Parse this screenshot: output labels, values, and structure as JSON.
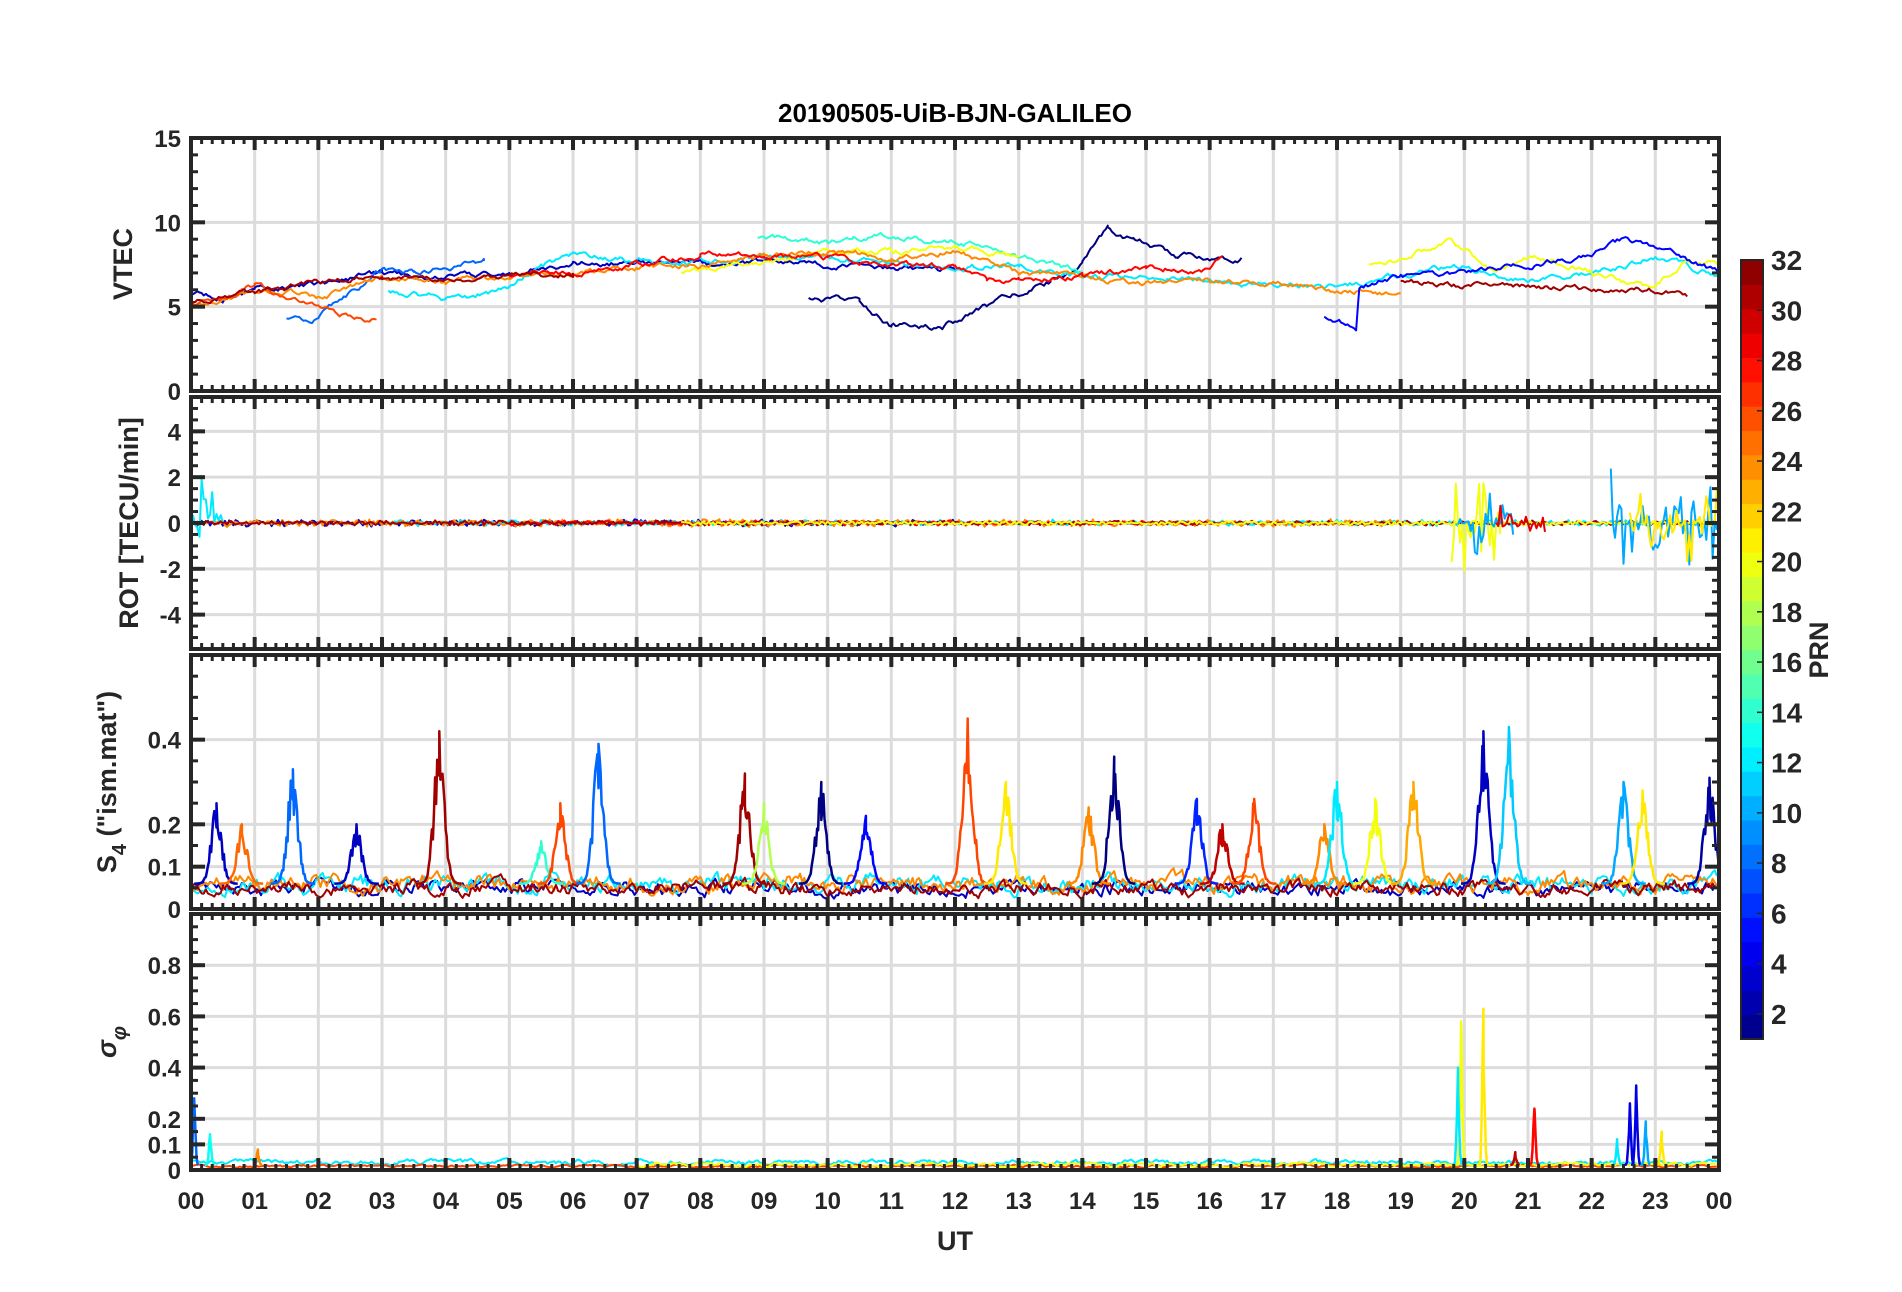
{
  "chart_data": {
    "type": "line",
    "title": "20190505-UiB-BJN-GALILEO",
    "xlabel": "UT",
    "xlim": [
      0,
      24
    ],
    "x_ticks": [
      "00",
      "01",
      "02",
      "03",
      "04",
      "05",
      "06",
      "07",
      "08",
      "09",
      "10",
      "11",
      "12",
      "13",
      "14",
      "15",
      "16",
      "17",
      "18",
      "19",
      "20",
      "21",
      "22",
      "23",
      "00"
    ],
    "colorbar": {
      "label": "PRN",
      "colormap": "jet",
      "range": [
        1,
        32
      ],
      "ticks": [
        "2",
        "4",
        "6",
        "8",
        "10",
        "12",
        "14",
        "16",
        "18",
        "20",
        "22",
        "24",
        "26",
        "28",
        "30",
        "32"
      ]
    },
    "panels": [
      {
        "id": "vtec",
        "ylabel": "VTEC",
        "ylim": [
          0,
          15
        ],
        "yticks": [
          0,
          5,
          10,
          15
        ],
        "ytick_labels": [
          "0",
          "5",
          "10",
          "15"
        ],
        "series": [
          {
            "prn": 1,
            "points": [
              [
                9.7,
                5.4
              ],
              [
                10.5,
                5.3
              ],
              [
                11,
                3.9
              ],
              [
                11.8,
                3.8
              ],
              [
                12.5,
                5
              ],
              [
                13.5,
                6.5
              ],
              [
                14,
                7.5
              ],
              [
                14.4,
                9.6
              ],
              [
                14.8,
                9
              ],
              [
                15.5,
                8
              ],
              [
                16.5,
                7.9
              ]
            ]
          },
          {
            "prn": 3,
            "points": [
              [
                0,
                5.8
              ],
              [
                0.5,
                5.5
              ],
              [
                1,
                6
              ],
              [
                2,
                6.3
              ],
              [
                3,
                7
              ],
              [
                4,
                6.7
              ],
              [
                5,
                7
              ],
              [
                6,
                7.5
              ],
              [
                7,
                7.6
              ],
              [
                8,
                7.5
              ],
              [
                9,
                7.6
              ],
              [
                10,
                7.5
              ],
              [
                11,
                7.3
              ],
              [
                12,
                7.2
              ]
            ]
          },
          {
            "prn": 8,
            "points": [
              [
                1.5,
                4.2
              ],
              [
                2,
                4.3
              ],
              [
                2.2,
                5
              ],
              [
                3,
                7.2
              ],
              [
                3.5,
                7
              ],
              [
                4.6,
                7.7
              ]
            ]
          },
          {
            "prn": 12,
            "points": [
              [
                3.1,
                5.9
              ],
              [
                4,
                5.5
              ],
              [
                5,
                6
              ],
              [
                5.5,
                7.5
              ],
              [
                6,
                8.1
              ],
              [
                7,
                7.7
              ],
              [
                8,
                7.6
              ],
              [
                9,
                7.9
              ],
              [
                10,
                8
              ],
              [
                11,
                7.5
              ],
              [
                12,
                7.3
              ],
              [
                13,
                7.5
              ],
              [
                14,
                6.8
              ],
              [
                16,
                6.5
              ],
              [
                17,
                6.2
              ],
              [
                18,
                6.3
              ],
              [
                19,
                6.8
              ],
              [
                20,
                7.5
              ],
              [
                21,
                6.5
              ],
              [
                22,
                7
              ],
              [
                23,
                8
              ],
              [
                24,
                6.8
              ]
            ]
          },
          {
            "prn": 14,
            "points": [
              [
                8.9,
                9.2
              ],
              [
                10,
                8.8
              ],
              [
                10.4,
                9.2
              ],
              [
                11.5,
                9
              ],
              [
                12,
                9
              ],
              [
                13,
                8
              ],
              [
                14,
                7
              ]
            ]
          },
          {
            "prn": 20,
            "points": [
              [
                7.7,
                7
              ],
              [
                8,
                7.2
              ],
              [
                9,
                7.5
              ],
              [
                10,
                8.3
              ],
              [
                11,
                8.3
              ],
              [
                12,
                8.5
              ],
              [
                13,
                8
              ]
            ]
          },
          {
            "prn": 20,
            "points": [
              [
                18.5,
                7.5
              ],
              [
                19,
                7.8
              ],
              [
                19.8,
                9
              ],
              [
                20.5,
                7
              ],
              [
                21,
                8
              ],
              [
                22,
                7
              ],
              [
                23,
                6
              ],
              [
                23.5,
                7.8
              ],
              [
                24,
                7.5
              ]
            ]
          },
          {
            "prn": 24,
            "points": [
              [
                0,
                5
              ],
              [
                1,
                5.8
              ],
              [
                1.5,
                6
              ],
              [
                2,
                5.5
              ],
              [
                3,
                6.7
              ],
              [
                4,
                6.5
              ],
              [
                5,
                6.8
              ],
              [
                6,
                7
              ],
              [
                7,
                7.3
              ],
              [
                8,
                7.4
              ],
              [
                9,
                8
              ],
              [
                10,
                8.3
              ],
              [
                11,
                8
              ],
              [
                12,
                8.3
              ],
              [
                13,
                7
              ],
              [
                14,
                6.7
              ],
              [
                15,
                6.5
              ],
              [
                16,
                6.5
              ],
              [
                18,
                6
              ],
              [
                19,
                5.8
              ]
            ]
          },
          {
            "prn": 26,
            "points": [
              [
                0,
                5
              ],
              [
                1,
                6.2
              ],
              [
                2,
                4.8
              ],
              [
                2.9,
                4.2
              ]
            ]
          },
          {
            "prn": 28,
            "points": [
              [
                5,
                6.7
              ],
              [
                6,
                7
              ],
              [
                7,
                7.5
              ],
              [
                8,
                8.1
              ],
              [
                9,
                8
              ],
              [
                10,
                7.9
              ],
              [
                11,
                7.5
              ],
              [
                12,
                7.4
              ],
              [
                12.5,
                6.7
              ],
              [
                13,
                6.5
              ],
              [
                14,
                6.8
              ],
              [
                15,
                7.3
              ],
              [
                16,
                7.2
              ],
              [
                16.2,
                8
              ]
            ]
          },
          {
            "prn": 31,
            "points": [
              [
                0,
                5.2
              ],
              [
                1,
                5.8
              ],
              [
                2,
                6.5
              ],
              [
                3,
                6.7
              ],
              [
                4,
                6.5
              ],
              [
                5,
                6.8
              ],
              [
                6,
                7
              ]
            ]
          },
          {
            "prn": 31,
            "points": [
              [
                19,
                6.5
              ],
              [
                20,
                6.2
              ],
              [
                21,
                6.3
              ],
              [
                22,
                6
              ],
              [
                23,
                6
              ],
              [
                23.5,
                5.6
              ]
            ]
          },
          {
            "prn": 5,
            "points": [
              [
                17.8,
                4.3
              ],
              [
                18.3,
                3.8
              ],
              [
                18.35,
                6.2
              ],
              [
                19,
                6.8
              ],
              [
                20,
                7
              ],
              [
                21,
                7.5
              ],
              [
                22,
                8
              ],
              [
                22.5,
                9
              ],
              [
                23,
                8.5
              ],
              [
                24,
                7
              ]
            ]
          }
        ]
      },
      {
        "id": "rot",
        "ylabel": "ROT [TECU/min]",
        "ylim": [
          -5.5,
          5.5
        ],
        "yticks": [
          -4,
          -2,
          0,
          2,
          4
        ],
        "ytick_labels": [
          "-4",
          "-2",
          "0",
          "2",
          "4"
        ],
        "series": [
          {
            "prn": 3,
            "start": 0,
            "end": 12,
            "amp": 0.12
          },
          {
            "prn": 12,
            "start": 3,
            "end": 24,
            "amp": 0.1
          },
          {
            "prn": 24,
            "start": 0,
            "end": 19,
            "amp": 0.12
          },
          {
            "prn": 28,
            "start": 5,
            "end": 16.2,
            "amp": 0.08
          },
          {
            "prn": 31,
            "start": 0,
            "end": 24,
            "amp": 0.08
          },
          {
            "prn": 20,
            "start": 7.7,
            "end": 24,
            "amp": 0.08
          }
        ],
        "bursts": [
          {
            "prn": 12,
            "start": 0,
            "end": 0.5,
            "amp": 2.5
          },
          {
            "prn": 20,
            "start": 19.8,
            "end": 20.6,
            "amp": 2.6
          },
          {
            "prn": 10,
            "start": 19.9,
            "end": 20.8,
            "amp": 2.2
          },
          {
            "prn": 29,
            "start": 20.5,
            "end": 21.3,
            "amp": 0.9
          },
          {
            "prn": 10,
            "start": 22.3,
            "end": 24,
            "amp": 2.5
          },
          {
            "prn": 21,
            "start": 22.6,
            "end": 24,
            "amp": 2.2
          }
        ]
      },
      {
        "id": "s4",
        "ylabel_main": "S",
        "ylabel_sub": "4",
        "ylabel_rest": " (\"ism.mat\")",
        "ylim": [
          0,
          0.6
        ],
        "yticks": [
          0,
          0.1,
          0.2,
          0.4
        ],
        "ytick_labels": [
          "0",
          "0.1",
          "0.2",
          "0.4"
        ],
        "base": [
          {
            "prn": 3,
            "start": 0,
            "end": 24,
            "level": 0.05
          },
          {
            "prn": 12,
            "start": 0,
            "end": 24,
            "level": 0.06
          },
          {
            "prn": 24,
            "start": 0,
            "end": 24,
            "level": 0.06
          },
          {
            "prn": 31,
            "start": 0,
            "end": 24,
            "level": 0.05
          }
        ],
        "peaks": [
          {
            "prn": 3,
            "t": 0.4,
            "value": 0.25
          },
          {
            "prn": 8,
            "t": 1.6,
            "value": 0.33
          },
          {
            "prn": 25,
            "t": 0.8,
            "value": 0.2
          },
          {
            "prn": 3,
            "t": 2.6,
            "value": 0.2
          },
          {
            "prn": 31,
            "t": 3.9,
            "value": 0.42
          },
          {
            "prn": 14,
            "t": 5.5,
            "value": 0.16
          },
          {
            "prn": 26,
            "t": 5.8,
            "value": 0.25
          },
          {
            "prn": 8,
            "t": 6.4,
            "value": 0.39
          },
          {
            "prn": 31,
            "t": 8.7,
            "value": 0.32
          },
          {
            "prn": 18,
            "t": 9,
            "value": 0.25
          },
          {
            "prn": 1,
            "t": 9.9,
            "value": 0.3
          },
          {
            "prn": 5,
            "t": 10.6,
            "value": 0.22
          },
          {
            "prn": 26,
            "t": 12.2,
            "value": 0.45
          },
          {
            "prn": 21,
            "t": 12.8,
            "value": 0.3
          },
          {
            "prn": 24,
            "t": 14.1,
            "value": 0.24
          },
          {
            "prn": 1,
            "t": 14.5,
            "value": 0.36
          },
          {
            "prn": 6,
            "t": 15.8,
            "value": 0.26
          },
          {
            "prn": 30,
            "t": 16.2,
            "value": 0.2
          },
          {
            "prn": 26,
            "t": 16.7,
            "value": 0.26
          },
          {
            "prn": 24,
            "t": 17.8,
            "value": 0.2
          },
          {
            "prn": 12,
            "t": 18,
            "value": 0.3
          },
          {
            "prn": 20,
            "t": 18.6,
            "value": 0.26
          },
          {
            "prn": 23,
            "t": 19.2,
            "value": 0.3
          },
          {
            "prn": 3,
            "t": 20.3,
            "value": 0.42
          },
          {
            "prn": 11,
            "t": 20.7,
            "value": 0.43
          },
          {
            "prn": 10,
            "t": 22.5,
            "value": 0.3
          },
          {
            "prn": 21,
            "t": 22.8,
            "value": 0.28
          },
          {
            "prn": 2,
            "t": 23.85,
            "value": 0.31
          }
        ]
      },
      {
        "id": "sigma",
        "ylabel_main": "σ",
        "ylabel_sub": "φ",
        "ylim": [
          0,
          1
        ],
        "yticks": [
          0,
          0.1,
          0.2,
          0.4,
          0.6,
          0.8
        ],
        "ytick_labels": [
          "0",
          "0.1",
          "0.2",
          "0.4",
          "0.6",
          "0.8"
        ],
        "base": [
          {
            "prn": 12,
            "start": 0,
            "end": 24,
            "level": 0.03
          },
          {
            "prn": 26,
            "start": 0,
            "end": 24,
            "level": 0.015
          },
          {
            "prn": 20,
            "start": 7,
            "end": 24,
            "level": 0.02
          }
        ],
        "peaks": [
          {
            "prn": 8,
            "t": 0.05,
            "value": 0.28
          },
          {
            "prn": 13,
            "t": 0.3,
            "value": 0.14
          },
          {
            "prn": 24,
            "t": 1.05,
            "value": 0.08
          },
          {
            "prn": 20,
            "t": 19.95,
            "value": 0.58
          },
          {
            "prn": 12,
            "t": 19.9,
            "value": 0.4
          },
          {
            "prn": 21,
            "t": 20.3,
            "value": 0.63
          },
          {
            "prn": 28,
            "t": 21.1,
            "value": 0.24
          },
          {
            "prn": 30,
            "t": 20.8,
            "value": 0.07
          },
          {
            "prn": 4,
            "t": 22.6,
            "value": 0.26
          },
          {
            "prn": 4,
            "t": 22.7,
            "value": 0.33
          },
          {
            "prn": 10,
            "t": 22.85,
            "value": 0.19
          },
          {
            "prn": 21,
            "t": 23.1,
            "value": 0.15
          },
          {
            "prn": 12,
            "t": 22.4,
            "value": 0.12
          }
        ]
      }
    ]
  }
}
